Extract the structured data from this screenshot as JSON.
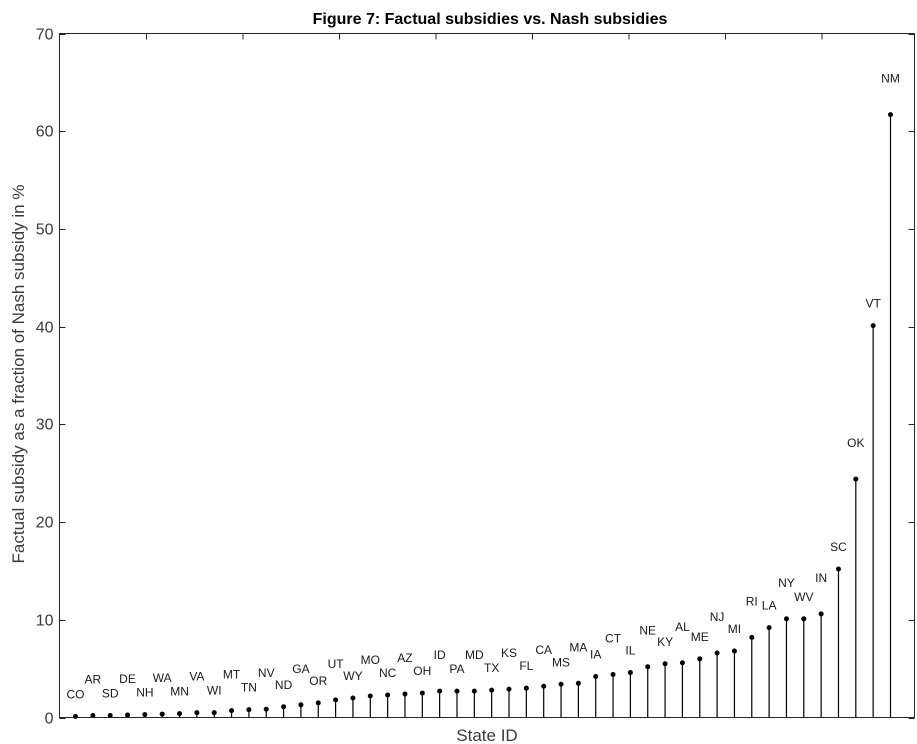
{
  "chart_data": {
    "type": "stem",
    "title": "Figure 7: Factual subsidies vs. Nash subsidies",
    "xlabel": "State ID",
    "ylabel": "Factual subsidy as a fraction of Nash subsidy in %",
    "ylim": [
      0,
      70
    ],
    "yticks": [
      0,
      10,
      20,
      30,
      40,
      50,
      60,
      70
    ],
    "grid": false,
    "categories": [
      "CO",
      "AR",
      "SD",
      "DE",
      "NH",
      "WA",
      "MN",
      "VA",
      "WI",
      "MT",
      "TN",
      "NV",
      "ND",
      "GA",
      "OR",
      "UT",
      "WY",
      "MO",
      "NC",
      "AZ",
      "OH",
      "ID",
      "PA",
      "MD",
      "TX",
      "KS",
      "FL",
      "CA",
      "MS",
      "MA",
      "IA",
      "CT",
      "IL",
      "NE",
      "KY",
      "AL",
      "ME",
      "NJ",
      "MI",
      "RI",
      "LA",
      "NY",
      "WV",
      "IN",
      "SC",
      "OK",
      "VT",
      "NM"
    ],
    "values": [
      0.1,
      0.2,
      0.2,
      0.25,
      0.3,
      0.35,
      0.4,
      0.5,
      0.5,
      0.7,
      0.8,
      0.85,
      1.1,
      1.3,
      1.5,
      1.8,
      2.0,
      2.2,
      2.3,
      2.4,
      2.5,
      2.7,
      2.7,
      2.7,
      2.8,
      2.9,
      3.0,
      3.2,
      3.4,
      3.5,
      4.2,
      4.4,
      4.6,
      5.2,
      5.5,
      5.6,
      6.0,
      6.6,
      6.8,
      8.2,
      9.2,
      10.1,
      10.1,
      10.6,
      15.2,
      24.4,
      40.1,
      61.7
    ]
  }
}
